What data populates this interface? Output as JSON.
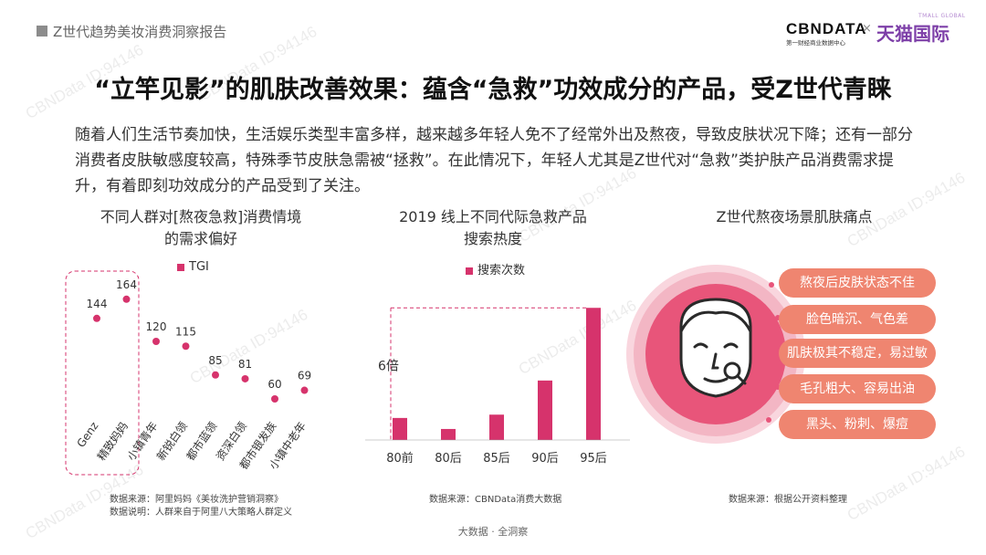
{
  "header": {
    "report_title": "Z世代趋势美妆消费洞察报告",
    "logo_cbn": "CBNDATA",
    "logo_cbn_sub": "第一财经商业数据中心",
    "logo_x": "×",
    "logo_tmall": "天猫国际",
    "logo_tmall_small": "TMALL GLOBAL"
  },
  "headline": "“立竿见影”的肌肤改善效果：蕴含“急救”功效成分的产品，受Z世代青睐",
  "body": "随着人们生活节奏加快，生活娱乐类型丰富多样，越来越多年轻人免不了经常外出及熬夜，导致皮肤状况下降；还有一部分消费者皮肤敏感度较高，特殊季节皮肤急需被“拯救”。在此情况下，年轻人尤其是Z世代对“急救”类护肤产品消费需求提升，有着即刻功效成分的产品受到了关注。",
  "chart1": {
    "title_line1": "不同人群对[熬夜急救]消费情境",
    "title_line2": "的需求偏好",
    "source_line1": "数据来源：阿里妈妈《美妆洗护营销洞察》",
    "source_line2": "数据说明：人群来自于阿里八大策略人群定义"
  },
  "chart2": {
    "title_line1": "2019 线上不同代际急救产品",
    "title_line2": "搜索热度",
    "source": "数据来源：CBNData消费大数据",
    "annotation": "6倍"
  },
  "chart3": {
    "title": "Z世代熬夜场景肌肤痛点",
    "source": "数据来源：根据公开资料整理",
    "pain_points": [
      "熬夜后皮肤状态不佳",
      "脸色暗沉、气色差",
      "肌肤极其不稳定，易过敏",
      "毛孔粗大、容易出油",
      "黑头、粉刺、爆痘"
    ]
  },
  "footer": "大数据 · 全洞察",
  "watermark": "CBNData ID:94146",
  "colors": {
    "accent": "#d6336c",
    "pill": "#ef8570",
    "circle_outer": "#f3b6c4",
    "circle_inner": "#e8557a"
  },
  "chart_data": [
    {
      "type": "scatter",
      "title": "不同人群对[熬夜急救]消费情境的需求偏好",
      "categories": [
        "Genz",
        "精致妈妈",
        "小镇青年",
        "新锐白领",
        "都市蓝领",
        "资深白领",
        "都市银发族",
        "小镇中老年"
      ],
      "series": [
        {
          "name": "TGI",
          "values": [
            144,
            164,
            120,
            115,
            85,
            81,
            60,
            69
          ]
        }
      ],
      "ylim": [
        0,
        200
      ],
      "legend": "top",
      "grid": false
    },
    {
      "type": "bar",
      "title": "2019 线上不同代际急救产品搜索热度",
      "categories": [
        "80前",
        "80后",
        "85后",
        "90后",
        "95后"
      ],
      "series": [
        {
          "name": "搜索次数",
          "values": [
            1.0,
            0.5,
            1.15,
            2.7,
            6.0
          ]
        }
      ],
      "ylim": [
        0,
        6.3
      ],
      "legend": "top",
      "grid": false
    }
  ]
}
